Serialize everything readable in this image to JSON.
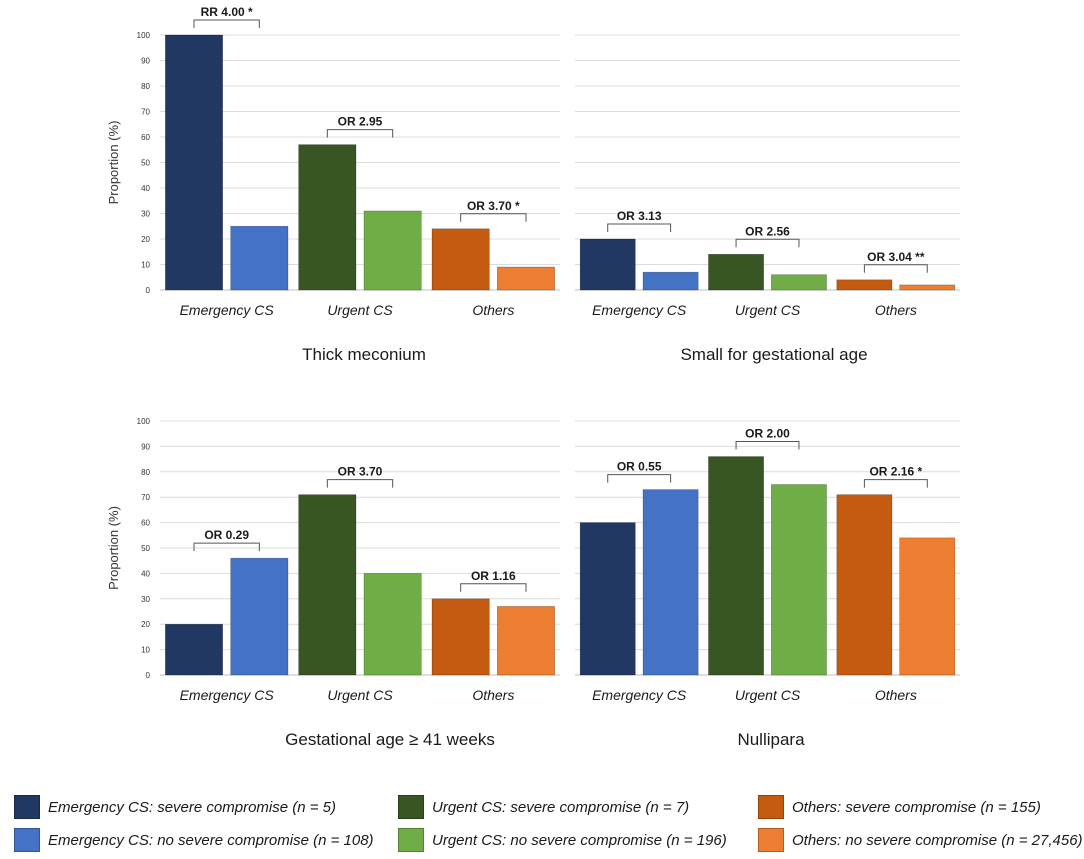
{
  "chart_data": [
    {
      "type": "bar",
      "panel": "top-left",
      "title": "Thick meconium",
      "ylabel": "Proportion (%)",
      "ylim": [
        0,
        100
      ],
      "yticks": [
        0,
        10,
        20,
        30,
        40,
        50,
        60,
        70,
        80,
        90,
        100
      ],
      "grid": true,
      "groups": [
        {
          "label": "Emergency CS",
          "values": [
            100,
            25
          ],
          "annotation": "RR 4.00 *"
        },
        {
          "label": "Urgent CS",
          "values": [
            57,
            31
          ],
          "annotation": "OR 2.95"
        },
        {
          "label": "Others",
          "values": [
            24,
            9
          ],
          "annotation": "OR 3.70 *"
        }
      ]
    },
    {
      "type": "bar",
      "panel": "top-right",
      "title": "Small for gestational age",
      "ylabel": "",
      "ylim": [
        0,
        100
      ],
      "yticks": [],
      "grid": true,
      "groups": [
        {
          "label": "Emergency CS",
          "values": [
            20,
            7
          ],
          "annotation": "OR 3.13"
        },
        {
          "label": "Urgent CS",
          "values": [
            14,
            6
          ],
          "annotation": "OR 2.56"
        },
        {
          "label": "Others",
          "values": [
            4,
            2
          ],
          "annotation": "OR 3.04 **"
        }
      ]
    },
    {
      "type": "bar",
      "panel": "bottom-left",
      "title": "Gestational age ≥ 41 weeks",
      "ylabel": "Proportion (%)",
      "ylim": [
        0,
        100
      ],
      "yticks": [
        0,
        10,
        20,
        30,
        40,
        50,
        60,
        70,
        80,
        90,
        100
      ],
      "grid": true,
      "groups": [
        {
          "label": "Emergency CS",
          "values": [
            20,
            46
          ],
          "annotation": "OR 0.29"
        },
        {
          "label": "Urgent CS",
          "values": [
            71,
            40
          ],
          "annotation": "OR 3.70"
        },
        {
          "label": "Others",
          "values": [
            30,
            27
          ],
          "annotation": "OR 1.16"
        }
      ]
    },
    {
      "type": "bar",
      "panel": "bottom-right",
      "title": "Nullipara",
      "ylabel": "",
      "ylim": [
        0,
        100
      ],
      "yticks": [],
      "grid": true,
      "groups": [
        {
          "label": "Emergency CS",
          "values": [
            60,
            73
          ],
          "annotation": "OR 0.55"
        },
        {
          "label": "Urgent CS",
          "values": [
            86,
            75
          ],
          "annotation": "OR 2.00"
        },
        {
          "label": "Others",
          "values": [
            71,
            54
          ],
          "annotation": "OR 2.16 *"
        }
      ]
    }
  ],
  "legend": {
    "placement": "bottom",
    "items": [
      {
        "label": "Emergency CS: severe compromise (n = 5)",
        "color": "#213862"
      },
      {
        "label": "Urgent CS: severe compromise (n = 7)",
        "color": "#375623"
      },
      {
        "label": "Others: severe compromise (n = 155)",
        "color": "#c55a11"
      },
      {
        "label": "Emergency CS: no severe compromise (n = 108)",
        "color": "#4472c4"
      },
      {
        "label": "Urgent CS: no severe compromise (n = 196)",
        "color": "#70ad47"
      },
      {
        "label": "Others: no severe compromise (n = 27,456)",
        "color": "#ed7d31"
      }
    ]
  },
  "colors": {
    "group_pairs": [
      [
        "#213862",
        "#4472c4"
      ],
      [
        "#375623",
        "#70ad47"
      ],
      [
        "#c55a11",
        "#ed7d31"
      ]
    ],
    "grid": "#dcdcdc",
    "text": "#1a1a1a"
  }
}
